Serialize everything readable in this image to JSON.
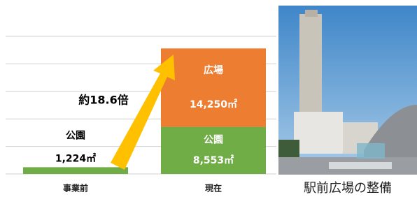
{
  "chart_data": {
    "type": "stacked-bar",
    "categories": [
      "事業前",
      "現在"
    ],
    "series": [
      {
        "name": "公園",
        "color": "#70ad47",
        "values": [
          1224,
          8553
        ],
        "value_labels": [
          "1,224㎡",
          "8,553㎡"
        ]
      },
      {
        "name": "広場",
        "color": "#ed7d31",
        "values": [
          null,
          14250
        ],
        "value_labels": [
          null,
          "14,250㎡"
        ]
      }
    ],
    "ylim": [
      0,
      25000
    ],
    "yticks": [
      0,
      5000,
      10000,
      15000,
      20000,
      25000
    ],
    "grid": true,
    "annotation": "約18.6倍",
    "photo_caption": "駅前広場の整備"
  }
}
